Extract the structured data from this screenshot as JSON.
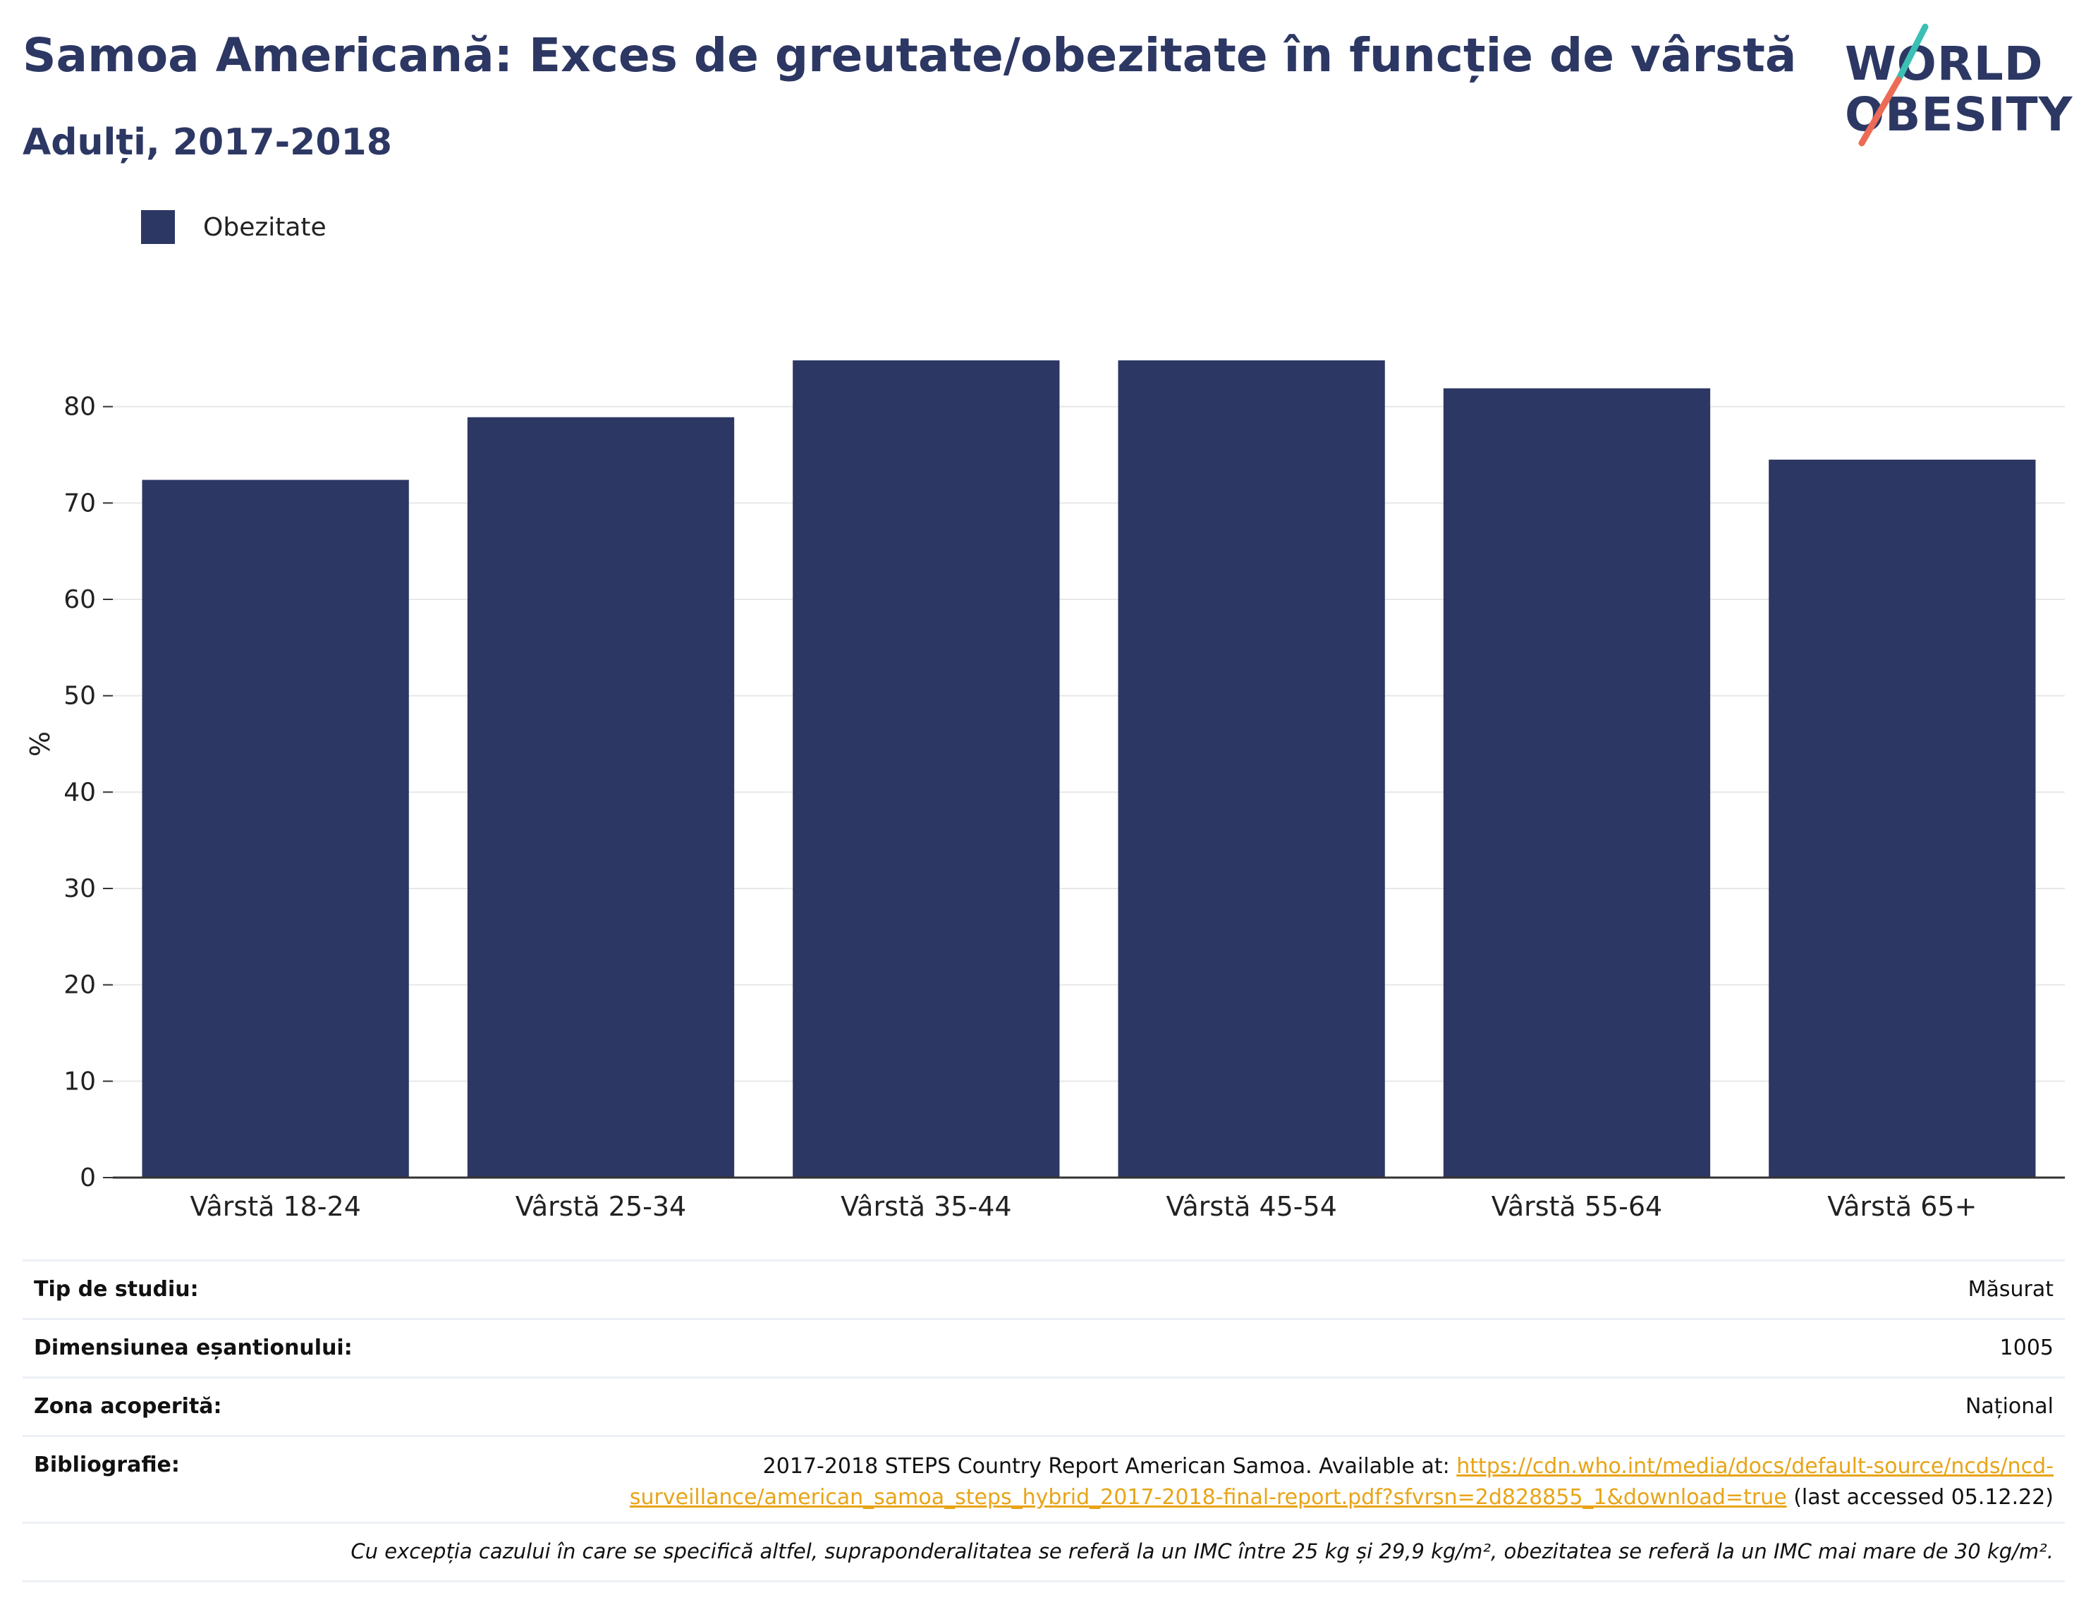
{
  "header": {
    "title": "Samoa Americană: Exces de greutate/obezitate în funcție de vârstă",
    "subtitle": "Adulți, 2017-2018"
  },
  "logo": {
    "line1": "WORLD",
    "line2": "OBESITY",
    "colors": {
      "text": "#2c3763",
      "slash_top": "#3cbfb4",
      "slash_bottom": "#ec6b56"
    }
  },
  "legend": {
    "label": "Obezitate"
  },
  "colors": {
    "bar": "#2c3763",
    "grid": "#e8e8e8",
    "axis": "#333333",
    "link": "#e8a417"
  },
  "chart_data": {
    "type": "bar",
    "categories": [
      "Vârstă 18-24",
      "Vârstă 25-34",
      "Vârstă 35-44",
      "Vârstă 45-54",
      "Vârstă 55-64",
      "Vârstă 65+"
    ],
    "series": [
      {
        "name": "Obezitate",
        "values": [
          72.4,
          78.9,
          84.8,
          84.8,
          81.9,
          74.5
        ]
      }
    ],
    "ylabel": "%",
    "yticks": [
      0,
      10,
      20,
      30,
      40,
      50,
      60,
      70,
      80
    ],
    "ylim": [
      0,
      90
    ],
    "grid": true,
    "legend_position": "top-left"
  },
  "info": {
    "rows": [
      {
        "label": "Tip de studiu:",
        "value": "Măsurat"
      },
      {
        "label": "Dimensiunea eșantionului:",
        "value": "1005"
      },
      {
        "label": "Zona acoperită:",
        "value": "Național"
      }
    ],
    "bibliography": {
      "label": "Bibliografie:",
      "prefix": "2017-2018 STEPS Country Report American Samoa. Available at: ",
      "link_line1": "https://cdn.who.int/media/docs/default-source/ncds/ncd-",
      "link_line2": "surveillance/american_samoa_steps_hybrid_2017-2018-final-report.pdf?sfvrsn=2d828855_1&download=true",
      "suffix": " (last accessed 05.12.22)"
    },
    "note": "Cu excepția cazului în care se specifică altfel, supraponderalitatea se referă la un IMC între 25 kg și 29,9 kg/m², obezitatea se referă la un IMC mai mare de 30 kg/m²."
  }
}
